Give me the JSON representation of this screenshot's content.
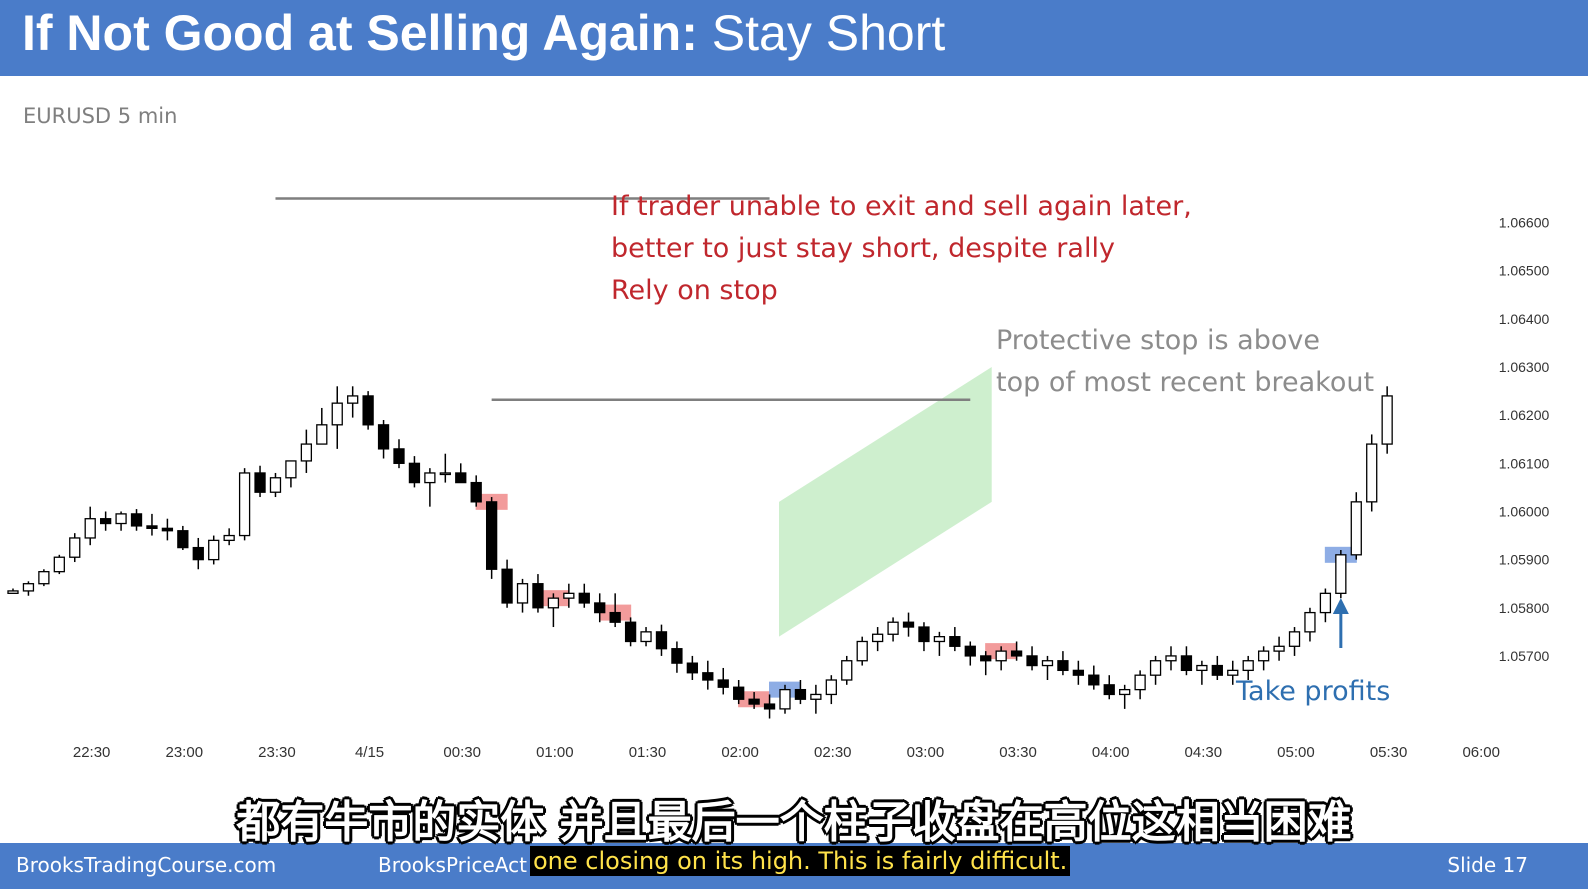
{
  "slide": {
    "title_bold": "If Not Good at Selling Again:",
    "title_light": "Stay Short",
    "subtitle": "EURUSD 5 min",
    "footer_left": "BrooksTradingCourse.com",
    "footer_mid": "BrooksPriceAct",
    "footer_right": "Slide  17"
  },
  "annotations": {
    "red_lines": [
      "If trader unable to exit and sell again later,",
      "better to just stay short, despite rally",
      "Rely on stop"
    ],
    "gray_lines": [
      "Protective stop is above",
      "top of most recent breakout"
    ],
    "blue": "Take profits"
  },
  "subtitles": {
    "chinese": "都有牛市的实体 并且最后一个柱子收盘在高位这相当困难",
    "english": "one closing on its high. This is fairly difficult."
  },
  "colors": {
    "header": "#4a7cc9",
    "red_text": "#c0272d",
    "blue_text": "#2e6fb0",
    "red_highlight": "#f08a8a",
    "blue_highlight": "#7a9fe0",
    "channel": "#c6ecc6"
  },
  "chart_data": {
    "type": "candlestick",
    "title": "EURUSD 5 min",
    "x_tick_labels": [
      "22:30",
      "23:00",
      "23:30",
      "4/15",
      "00:30",
      "01:00",
      "01:30",
      "02:00",
      "02:30",
      "03:00",
      "03:30",
      "04:00",
      "04:30",
      "05:00",
      "05:30",
      "06:00"
    ],
    "y_tick_labels": [
      "1.06600",
      "1.06500",
      "1.06400",
      "1.06300",
      "1.06200",
      "1.06100",
      "1.06000",
      "1.05900",
      "1.05800",
      "1.05700"
    ],
    "ylim": [
      1.0565,
      1.0673
    ],
    "bars_per_30min": 6,
    "first_tick_bar": 6,
    "resistance_lines": [
      {
        "price": 1.0665,
        "from_bar": 17,
        "to_bar": 49
      },
      {
        "price": 1.06232,
        "from_bar": 31,
        "to_bar": 62
      }
    ],
    "red_signal_bars": [
      31,
      35,
      39,
      48,
      64
    ],
    "blue_signal_bars": [
      50,
      86
    ],
    "channel": {
      "from_bar": 50,
      "to_bar": 63,
      "bottom_start": 1.0574,
      "bottom_end": 1.0602,
      "width": 0.0028
    },
    "arrow_bar": 86,
    "ohlc": [
      [
        1.0583,
        1.0584,
        1.0583,
        1.05835
      ],
      [
        1.05835,
        1.05855,
        1.05825,
        1.0585
      ],
      [
        1.0585,
        1.0588,
        1.05845,
        1.05875
      ],
      [
        1.05875,
        1.0591,
        1.0587,
        1.05905
      ],
      [
        1.05905,
        1.05955,
        1.05895,
        1.05945
      ],
      [
        1.05945,
        1.0601,
        1.0593,
        1.05985
      ],
      [
        1.05985,
        1.06,
        1.0596,
        1.05975
      ],
      [
        1.05975,
        1.06,
        1.0596,
        1.05995
      ],
      [
        1.05995,
        1.06005,
        1.0596,
        1.0597
      ],
      [
        1.0597,
        1.05995,
        1.0595,
        1.05965
      ],
      [
        1.05965,
        1.05985,
        1.0594,
        1.0596
      ],
      [
        1.0596,
        1.0597,
        1.0592,
        1.05925
      ],
      [
        1.05925,
        1.05945,
        1.0588,
        1.059
      ],
      [
        1.059,
        1.0595,
        1.0589,
        1.0594
      ],
      [
        1.0594,
        1.05965,
        1.0593,
        1.0595
      ],
      [
        1.0595,
        1.0609,
        1.0594,
        1.0608
      ],
      [
        1.0608,
        1.06095,
        1.0603,
        1.0604
      ],
      [
        1.0604,
        1.0608,
        1.0603,
        1.0607
      ],
      [
        1.0607,
        1.06095,
        1.0605,
        1.06105
      ],
      [
        1.06105,
        1.0617,
        1.0608,
        1.0614
      ],
      [
        1.0614,
        1.06215,
        1.0614,
        1.0618
      ],
      [
        1.0618,
        1.0626,
        1.0613,
        1.06225
      ],
      [
        1.06225,
        1.0626,
        1.06195,
        1.0624
      ],
      [
        1.0624,
        1.0625,
        1.0617,
        1.0618
      ],
      [
        1.0618,
        1.0619,
        1.0611,
        1.0613
      ],
      [
        1.0613,
        1.0615,
        1.0609,
        1.061
      ],
      [
        1.061,
        1.06115,
        1.0605,
        1.0606
      ],
      [
        1.0606,
        1.0609,
        1.0601,
        1.0608
      ],
      [
        1.0608,
        1.0612,
        1.0606,
        1.0608
      ],
      [
        1.0608,
        1.061,
        1.0606,
        1.0606
      ],
      [
        1.0606,
        1.06075,
        1.0601,
        1.0602
      ],
      [
        1.0602,
        1.0603,
        1.0586,
        1.0588
      ],
      [
        1.0588,
        1.059,
        1.058,
        1.0581
      ],
      [
        1.0581,
        1.0586,
        1.0579,
        1.0585
      ],
      [
        1.0585,
        1.0587,
        1.0579,
        1.058
      ],
      [
        1.058,
        1.0583,
        1.0576,
        1.0582
      ],
      [
        1.0582,
        1.0585,
        1.058,
        1.0583
      ],
      [
        1.0583,
        1.0585,
        1.058,
        1.0581
      ],
      [
        1.0581,
        1.0583,
        1.0577,
        1.0579
      ],
      [
        1.0579,
        1.0583,
        1.0576,
        1.0577
      ],
      [
        1.0577,
        1.0578,
        1.0572,
        1.0573
      ],
      [
        1.0573,
        1.0576,
        1.0572,
        1.0575
      ],
      [
        1.0575,
        1.05765,
        1.057,
        1.05715
      ],
      [
        1.05715,
        1.0573,
        1.05665,
        1.05685
      ],
      [
        1.05685,
        1.057,
        1.0565,
        1.05665
      ],
      [
        1.05665,
        1.0569,
        1.0563,
        1.0565
      ],
      [
        1.0565,
        1.05675,
        1.0562,
        1.05635
      ],
      [
        1.05635,
        1.0565,
        1.056,
        1.0561
      ],
      [
        1.0561,
        1.05625,
        1.0559,
        1.056
      ],
      [
        1.056,
        1.0562,
        1.0557,
        1.0559
      ],
      [
        1.0559,
        1.0564,
        1.0558,
        1.0563
      ],
      [
        1.0563,
        1.0565,
        1.056,
        1.0561
      ],
      [
        1.0561,
        1.0564,
        1.0558,
        1.0562
      ],
      [
        1.0562,
        1.0566,
        1.056,
        1.0565
      ],
      [
        1.0565,
        1.057,
        1.0564,
        1.0569
      ],
      [
        1.0569,
        1.0574,
        1.0568,
        1.0573
      ],
      [
        1.0573,
        1.0576,
        1.0571,
        1.05745
      ],
      [
        1.05745,
        1.0578,
        1.0573,
        1.0577
      ],
      [
        1.0577,
        1.0579,
        1.0574,
        1.0576
      ],
      [
        1.0576,
        1.0577,
        1.0571,
        1.0573
      ],
      [
        1.0573,
        1.0575,
        1.057,
        1.0574
      ],
      [
        1.0574,
        1.0576,
        1.0571,
        1.0572
      ],
      [
        1.0572,
        1.0573,
        1.0568,
        1.057
      ],
      [
        1.057,
        1.0571,
        1.0566,
        1.0569
      ],
      [
        1.0569,
        1.0572,
        1.0567,
        1.0571
      ],
      [
        1.0571,
        1.0573,
        1.0569,
        1.057
      ],
      [
        1.057,
        1.0572,
        1.0567,
        1.0568
      ],
      [
        1.0568,
        1.057,
        1.0565,
        1.0569
      ],
      [
        1.0569,
        1.0571,
        1.0566,
        1.0567
      ],
      [
        1.0567,
        1.0569,
        1.0564,
        1.0566
      ],
      [
        1.0566,
        1.0568,
        1.0563,
        1.0564
      ],
      [
        1.0564,
        1.0566,
        1.0561,
        1.0562
      ],
      [
        1.0562,
        1.0564,
        1.0559,
        1.0563
      ],
      [
        1.0563,
        1.0567,
        1.0561,
        1.0566
      ],
      [
        1.0566,
        1.057,
        1.0564,
        1.0569
      ],
      [
        1.0569,
        1.0572,
        1.0567,
        1.057
      ],
      [
        1.057,
        1.0572,
        1.0566,
        1.0567
      ],
      [
        1.0567,
        1.0569,
        1.0564,
        1.0568
      ],
      [
        1.0568,
        1.057,
        1.0565,
        1.0566
      ],
      [
        1.0566,
        1.0569,
        1.0564,
        1.0567
      ],
      [
        1.0567,
        1.057,
        1.0565,
        1.0569
      ],
      [
        1.0569,
        1.0572,
        1.0567,
        1.0571
      ],
      [
        1.0571,
        1.0574,
        1.0569,
        1.0572
      ],
      [
        1.0572,
        1.0576,
        1.057,
        1.0575
      ],
      [
        1.0575,
        1.058,
        1.0573,
        1.0579
      ],
      [
        1.0579,
        1.0584,
        1.0577,
        1.0583
      ],
      [
        1.0583,
        1.0592,
        1.0582,
        1.0591
      ],
      [
        1.0591,
        1.0604,
        1.059,
        1.0602
      ],
      [
        1.0602,
        1.0616,
        1.06,
        1.0614
      ],
      [
        1.0614,
        1.0626,
        1.0612,
        1.0624
      ]
    ]
  }
}
